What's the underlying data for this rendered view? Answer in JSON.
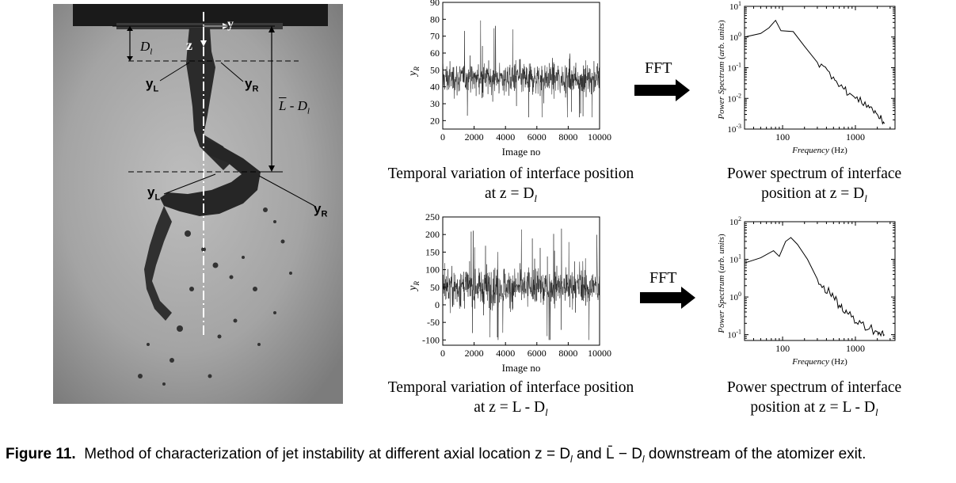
{
  "figure": {
    "caption_label": "Figure 11.",
    "caption_text": "Method of characterization of jet instability at different axial location z = D",
    "caption_sub1": "l",
    "caption_mid": " and L̄ − D",
    "caption_sub2": "l",
    "caption_end": " downstream of the atomizer exit."
  },
  "photo": {
    "labels": {
      "y_axis": "y",
      "z_axis": "z",
      "d_l": "D",
      "d_l_sub": "l",
      "yl_top": "y",
      "yr_top": "y",
      "yl_bot": "y",
      "yr_bot": "y",
      "sub_l": "L",
      "sub_r": "R",
      "lbar": "L - D",
      "lbar_sub": "l"
    }
  },
  "fft_label_top": "FFT",
  "fft_label_bottom": "FFT",
  "captions": {
    "temporal_top_line1": "Temporal variation of interface position",
    "temporal_top_line2": "at z = D",
    "temporal_top_sub": "l",
    "power_top_line1": "Power spectrum of interface",
    "power_top_line2": "position at z = D",
    "power_top_sub": "l",
    "temporal_bot_line1": "Temporal variation of interface position",
    "temporal_bot_line2": "at z = L - D",
    "temporal_bot_sub": "l",
    "power_bot_line1": "Power spectrum of interface",
    "power_bot_line2": "position at z = L - D",
    "power_bot_sub": "l"
  },
  "chart_data": [
    {
      "type": "line",
      "id": "temporal-top",
      "xlabel": "Image no",
      "ylabel": "y_R",
      "xlim": [
        0,
        10000
      ],
      "ylim": [
        15,
        90
      ],
      "xticks": [
        0,
        2000,
        4000,
        6000,
        8000,
        10000
      ],
      "yticks": [
        20,
        30,
        40,
        50,
        60,
        70,
        80,
        90
      ],
      "series_summary": {
        "mean": 45,
        "typical_range": [
          35,
          56
        ],
        "extreme_range": [
          22,
          80
        ]
      }
    },
    {
      "type": "line",
      "id": "power-top",
      "xlabel": "Frequency (Hz)",
      "ylabel": "Power Spectrum (arb. units)",
      "xscale": "log",
      "yscale": "log",
      "xticks": [
        100,
        1000
      ],
      "yticks": [
        "10^-3",
        "10^-2",
        "10^-1",
        "10^0",
        "10^1"
      ],
      "x": [
        30,
        50,
        65,
        80,
        95,
        140,
        200,
        300,
        500,
        700,
        1000,
        1500,
        2000,
        2500
      ],
      "y": [
        1.0,
        1.3,
        2.0,
        3.5,
        1.6,
        1.5,
        0.5,
        0.15,
        0.05,
        0.02,
        0.01,
        0.006,
        0.003,
        0.0015
      ]
    },
    {
      "type": "line",
      "id": "temporal-bottom",
      "xlabel": "Image no",
      "ylabel": "y_R",
      "xlim": [
        0,
        10000
      ],
      "ylim": [
        -115,
        250
      ],
      "xticks": [
        0,
        2000,
        4000,
        6000,
        8000,
        10000
      ],
      "yticks": [
        -100,
        -50,
        0,
        50,
        100,
        150,
        200,
        250
      ],
      "series_summary": {
        "mean": 50,
        "typical_range": [
          -10,
          110
        ],
        "extreme_range": [
          -100,
          220
        ]
      }
    },
    {
      "type": "line",
      "id": "power-bottom",
      "xlabel": "Frequency (Hz)",
      "ylabel": "Power Spectrum (arb. units)",
      "xscale": "log",
      "yscale": "log",
      "xticks": [
        100,
        1000
      ],
      "yticks": [
        "10^-1",
        "10^0",
        "10^1",
        "10^2"
      ],
      "x": [
        30,
        50,
        75,
        90,
        110,
        130,
        160,
        220,
        300,
        450,
        600,
        800,
        1200,
        2000,
        2500
      ],
      "y": [
        8,
        11,
        17,
        12,
        30,
        38,
        25,
        10,
        3,
        1.2,
        0.6,
        0.35,
        0.2,
        0.12,
        0.1
      ]
    }
  ]
}
